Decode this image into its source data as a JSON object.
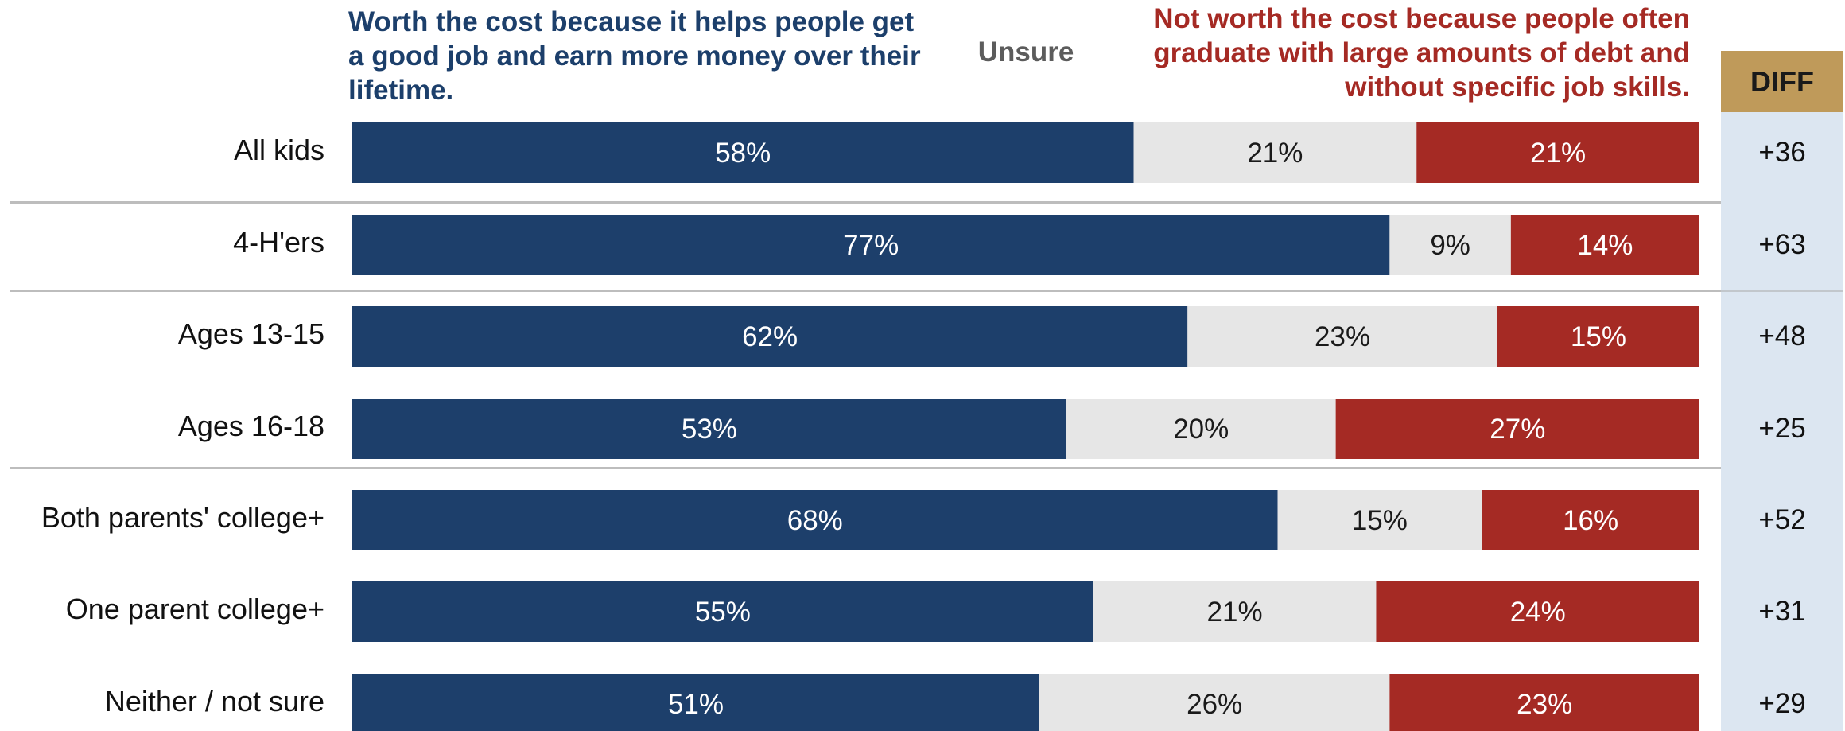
{
  "chart_data": {
    "type": "bar",
    "orientation": "horizontal",
    "stacked": true,
    "percent_scale": [
      0,
      100
    ],
    "legend": {
      "worth": "Worth the cost because it helps people get a good job and earn more money over their lifetime.",
      "unsure": "Unsure",
      "not_worth": "Not worth the cost because people often graduate with large amounts of debt and without specific job skills."
    },
    "colors": {
      "worth": "#1d3f6b",
      "unsure": "#e6e6e6",
      "not_worth": "#a52a24",
      "diff_header": "#bf9a5a",
      "diff_column": "#dce6f1"
    },
    "diff_header": "DIFF",
    "categories": [
      "All kids",
      "4-H'ers",
      "Ages 13-15",
      "Ages 16-18",
      "Both parents' college+",
      "One parent college+",
      "Neither / not sure"
    ],
    "series": [
      {
        "key": "worth",
        "values": [
          58,
          77,
          62,
          53,
          68,
          55,
          51
        ],
        "labels": [
          "58%",
          "77%",
          "62%",
          "53%",
          "68%",
          "55%",
          "51%"
        ]
      },
      {
        "key": "unsure",
        "values": [
          21,
          9,
          23,
          20,
          15,
          21,
          26
        ],
        "labels": [
          "21%",
          "9%",
          "23%",
          "20%",
          "15%",
          "21%",
          "26%"
        ]
      },
      {
        "key": "not_worth",
        "values": [
          21,
          14,
          15,
          27,
          16,
          24,
          23
        ],
        "labels": [
          "21%",
          "14%",
          "15%",
          "27%",
          "16%",
          "24%",
          "23%"
        ]
      }
    ],
    "diff": [
      "+36",
      "+63",
      "+48",
      "+25",
      "+52",
      "+31",
      "+29"
    ]
  }
}
